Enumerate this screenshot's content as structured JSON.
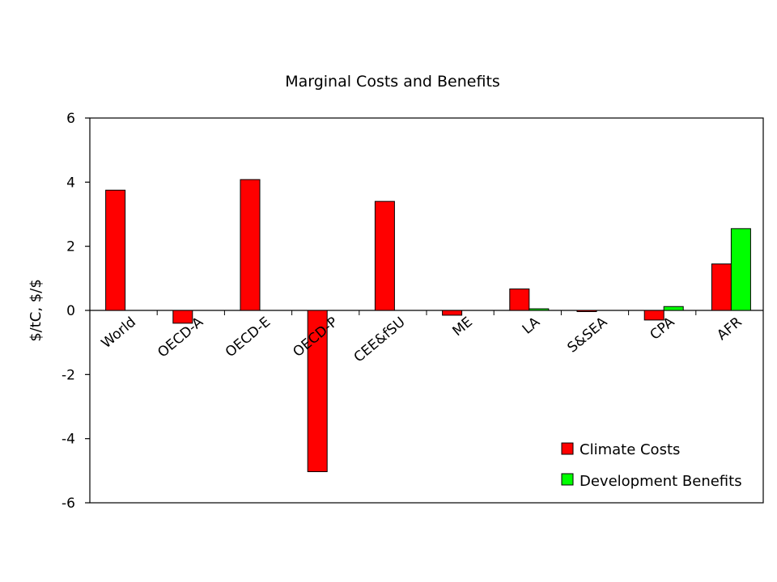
{
  "chart_data": {
    "type": "bar",
    "title": "Marginal Costs and Benefits",
    "xlabel": "",
    "ylabel": "$/tC, $/$",
    "ylim": [
      -6,
      6
    ],
    "yticks": [
      "6",
      "4",
      "2",
      "0",
      "-2",
      "-4",
      "-6"
    ],
    "ytick_values": [
      6,
      4,
      2,
      0,
      -2,
      -4,
      -6
    ],
    "grid": false,
    "legend_position": "bottom-right",
    "categories": [
      "World",
      "OECD-A",
      "OECD-E",
      "OECD-P",
      "CEE&fSU",
      "ME",
      "LA",
      "S&SEA",
      "CPA",
      "AFR"
    ],
    "series": [
      {
        "name": "Climate Costs",
        "color": "#ff0000",
        "values": [
          3.75,
          -0.4,
          4.08,
          -5.03,
          3.4,
          -0.15,
          0.67,
          -0.03,
          -0.3,
          1.45
        ]
      },
      {
        "name": "Development Benefits",
        "color": "#00ff00",
        "values": [
          null,
          null,
          null,
          null,
          null,
          null,
          0.05,
          null,
          0.12,
          2.55
        ]
      }
    ]
  }
}
